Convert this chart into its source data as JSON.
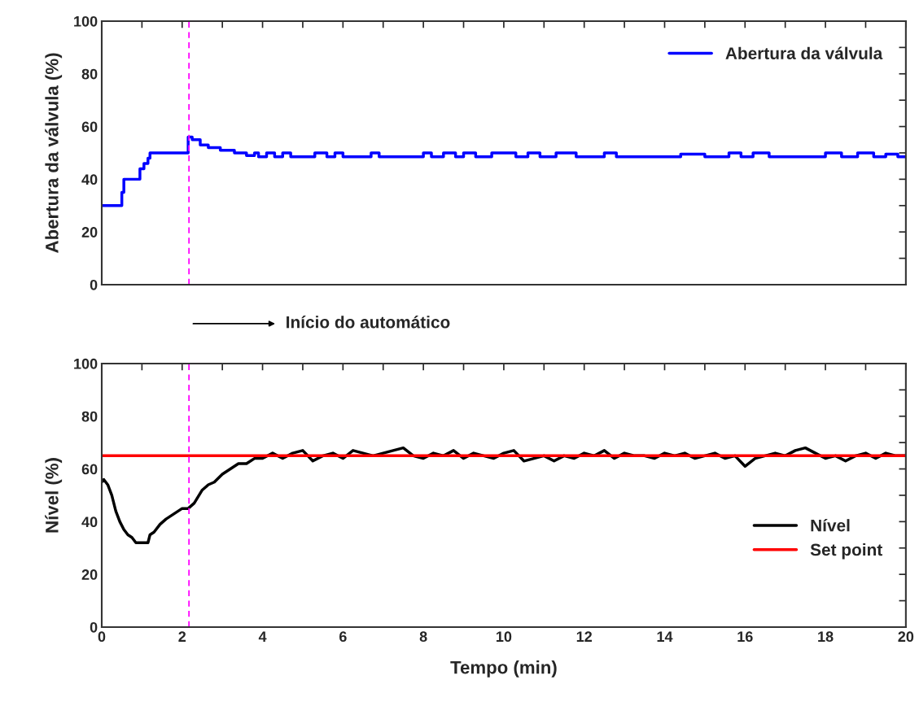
{
  "chart_data": [
    {
      "type": "step",
      "ylabel": "Abertura da válvula (%)",
      "xlim": [
        0,
        20
      ],
      "ylim": [
        0,
        100
      ],
      "xticks": [
        0,
        {
          "value": 1,
          "label": null
        },
        2,
        {
          "value": 3,
          "label": null
        },
        4,
        {
          "value": 5,
          "label": null
        },
        6,
        {
          "value": 7,
          "label": null
        },
        8,
        {
          "value": 9,
          "label": null
        },
        10,
        {
          "value": 11,
          "label": null
        },
        12,
        {
          "value": 13,
          "label": null
        },
        14,
        {
          "value": 15,
          "label": null
        },
        16,
        {
          "value": 17,
          "label": null
        },
        18,
        {
          "value": 19,
          "label": null
        },
        20
      ],
      "yticks": [
        0,
        {
          "value": 10,
          "label": null
        },
        20,
        {
          "value": 30,
          "label": null
        },
        40,
        {
          "value": 50,
          "label": null
        },
        60,
        {
          "value": 70,
          "label": null
        },
        80,
        {
          "value": 90,
          "label": null
        },
        100
      ],
      "tick_labels": "y",
      "legend": "top right",
      "grid": false,
      "ref_lines": [
        {
          "axis": "x",
          "value": 2.17,
          "color": "#ff00ff",
          "line_style": "dashed"
        }
      ],
      "annotations": [
        "Início do automático"
      ],
      "series": [
        {
          "name": "Abertura da válvula",
          "color": "#0000ff",
          "x": [
            0,
            0.5,
            0.55,
            0.95,
            1.05,
            1.15,
            1.2,
            2.15,
            2.25,
            2.45,
            2.65,
            2.95,
            3.3,
            3.6,
            3.8,
            3.9,
            4.1,
            4.3,
            4.5,
            4.7,
            5.0,
            5.3,
            5.6,
            5.8,
            6.0,
            6.3,
            6.7,
            6.9,
            7.3,
            8.0,
            8.2,
            8.5,
            8.8,
            9.0,
            9.3,
            9.7,
            10.3,
            10.6,
            10.9,
            11.3,
            11.8,
            12.3,
            12.5,
            12.8,
            13.3,
            13.8,
            14.4,
            15.0,
            15.6,
            15.9,
            16.2,
            16.6,
            17.0,
            17.6,
            18.0,
            18.4,
            18.8,
            19.2,
            19.5,
            19.8,
            20
          ],
          "values": [
            30,
            35,
            40,
            44,
            46,
            48,
            50,
            56,
            55,
            53,
            52,
            51,
            50,
            49,
            50,
            48.5,
            50,
            48.5,
            50,
            48.5,
            48.5,
            50,
            48.5,
            50,
            48.5,
            48.5,
            50,
            48.5,
            48.5,
            50,
            48.5,
            50,
            48.5,
            50,
            48.5,
            50,
            48.5,
            50,
            48.5,
            50,
            48.5,
            48.5,
            50,
            48.5,
            48.5,
            48.5,
            49.5,
            48.5,
            50,
            48.5,
            50,
            48.5,
            48.5,
            48.5,
            50,
            48.5,
            50,
            48.5,
            49.5,
            48.5,
            48.5
          ]
        }
      ]
    },
    {
      "type": "line",
      "xlabel": "Tempo (min)",
      "ylabel": "Nível (%)",
      "xlim": [
        0,
        20
      ],
      "ylim": [
        0,
        100
      ],
      "xticks": [
        0,
        {
          "value": 1,
          "label": null
        },
        2,
        {
          "value": 3,
          "label": null
        },
        4,
        {
          "value": 5,
          "label": null
        },
        6,
        {
          "value": 7,
          "label": null
        },
        8,
        {
          "value": 9,
          "label": null
        },
        10,
        {
          "value": 11,
          "label": null
        },
        12,
        {
          "value": 13,
          "label": null
        },
        14,
        {
          "value": 15,
          "label": null
        },
        16,
        {
          "value": 17,
          "label": null
        },
        18,
        {
          "value": 19,
          "label": null
        },
        20
      ],
      "yticks": [
        0,
        {
          "value": 10,
          "label": null
        },
        20,
        {
          "value": 30,
          "label": null
        },
        40,
        {
          "value": 50,
          "label": null
        },
        60,
        {
          "value": 70,
          "label": null
        },
        80,
        {
          "value": 90,
          "label": null
        },
        100
      ],
      "legend": "bottom right",
      "grid": false,
      "ref_lines": [
        {
          "axis": "x",
          "value": 2.17,
          "color": "#ff00ff",
          "line_style": "dashed"
        }
      ],
      "series": [
        {
          "name": "Nível",
          "color": "#000000",
          "x": [
            0,
            0.05,
            0.15,
            0.25,
            0.35,
            0.45,
            0.55,
            0.65,
            0.75,
            0.85,
            1.0,
            1.15,
            1.2,
            1.3,
            1.45,
            1.6,
            1.8,
            2.0,
            2.15,
            2.3,
            2.5,
            2.65,
            2.8,
            3.0,
            3.2,
            3.4,
            3.6,
            3.8,
            4.0,
            4.25,
            4.5,
            4.75,
            5,
            5.25,
            5.5,
            5.75,
            6,
            6.25,
            6.5,
            6.75,
            7,
            7.25,
            7.5,
            7.75,
            8,
            8.25,
            8.5,
            8.75,
            9,
            9.25,
            9.5,
            9.75,
            10,
            10.25,
            10.5,
            10.75,
            11,
            11.25,
            11.5,
            11.75,
            12,
            12.25,
            12.5,
            12.75,
            13,
            13.25,
            13.5,
            13.75,
            14,
            14.25,
            14.5,
            14.75,
            15,
            15.25,
            15.5,
            15.75,
            16,
            16.25,
            16.5,
            16.75,
            17,
            17.25,
            17.5,
            17.75,
            18,
            18.25,
            18.5,
            18.75,
            19,
            19.25,
            19.5,
            19.75,
            20
          ],
          "values": [
            55,
            56,
            54,
            50,
            44,
            40,
            37,
            35,
            34,
            32,
            32,
            32,
            35,
            36,
            39,
            41,
            43,
            45,
            45,
            47,
            52,
            54,
            55,
            58,
            60,
            62,
            62,
            64,
            64,
            66,
            64,
            66,
            67,
            63,
            65,
            66,
            64,
            67,
            66,
            65,
            66,
            67,
            68,
            65,
            64,
            66,
            65,
            67,
            64,
            66,
            65,
            64,
            66,
            67,
            63,
            64,
            65,
            63,
            65,
            64,
            66,
            65,
            67,
            64,
            66,
            65,
            65,
            64,
            66,
            65,
            66,
            64,
            65,
            66,
            64,
            65,
            61,
            64,
            65,
            66,
            65,
            67,
            68,
            66,
            64,
            65,
            63,
            65,
            66,
            64,
            66,
            65,
            65
          ]
        },
        {
          "name": "Set point",
          "color": "#ff0000",
          "x": [
            0,
            20
          ],
          "values": [
            65,
            65
          ]
        }
      ]
    }
  ]
}
